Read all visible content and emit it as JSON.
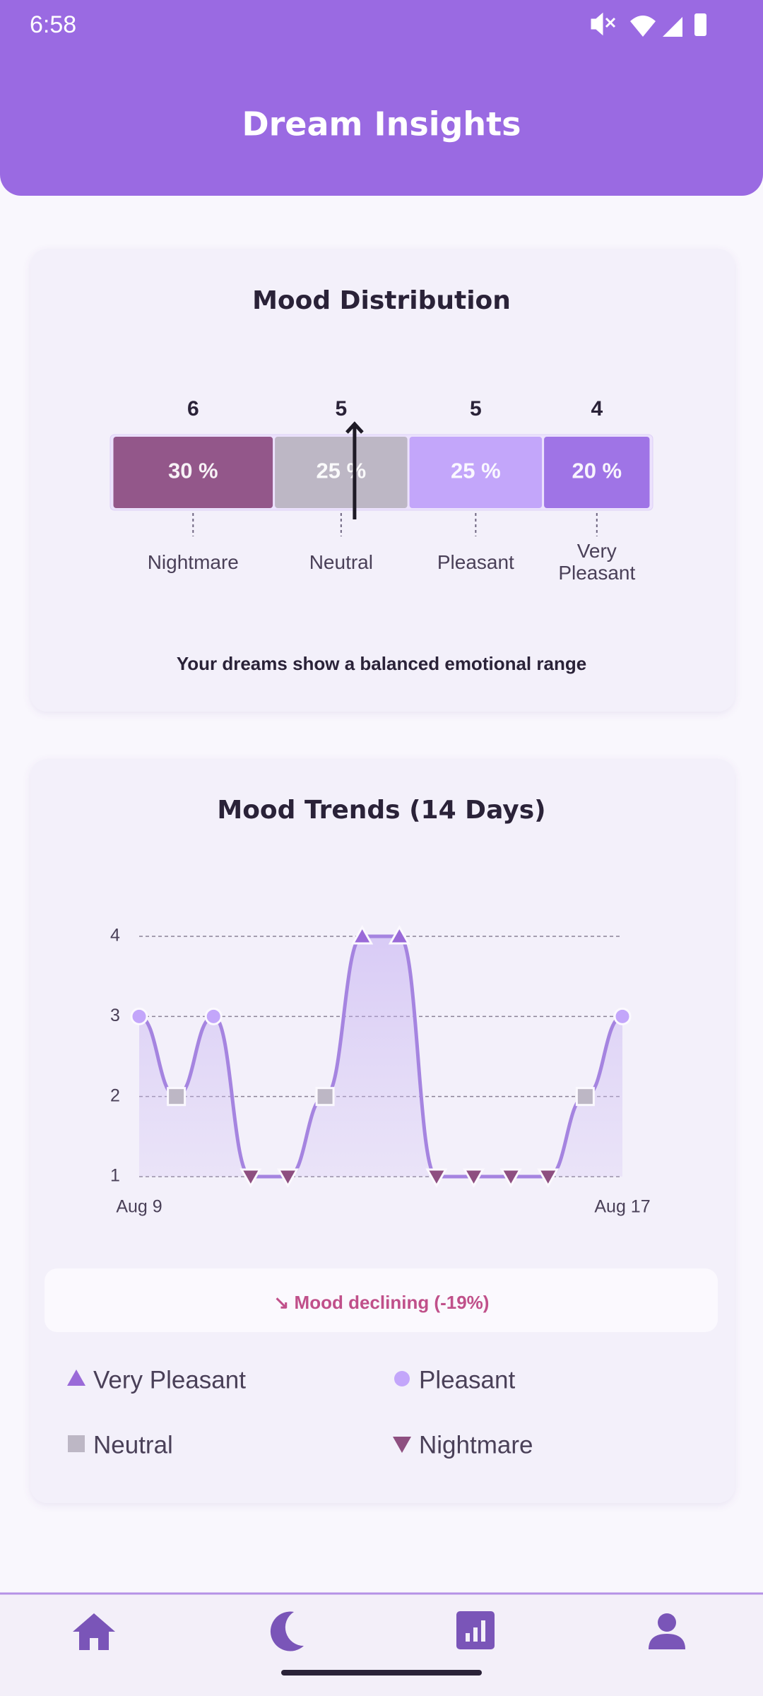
{
  "status_bar": {
    "time": "6:58"
  },
  "header": {
    "title": "Dream Insights"
  },
  "chart_data": [
    {
      "type": "stacked-bar",
      "title": "Mood Distribution",
      "categories": [
        "Nightmare",
        "Neutral",
        "Pleasant",
        "Very Pleasant"
      ],
      "counts": [
        6,
        5,
        5,
        4
      ],
      "values": [
        30,
        25,
        25,
        20
      ],
      "value_labels": [
        "30 %",
        "25 %",
        "25 %",
        "20 %"
      ],
      "colors": [
        "#93578a",
        "#bdb7c5",
        "#c3a6fa",
        "#9f74e6"
      ],
      "indicator": 45,
      "xlim": [
        0,
        100
      ],
      "caption": "Your dreams show a balanced emotional range"
    },
    {
      "type": "line",
      "title": "Mood Trends (14 Days)",
      "categories": [
        "Aug 9",
        null,
        null,
        null,
        null,
        null,
        null,
        null,
        null,
        null,
        null,
        null,
        null,
        "Aug 17"
      ],
      "values": [
        3,
        2,
        3,
        1,
        1,
        2,
        4,
        4,
        1,
        1,
        1,
        1,
        2,
        3
      ],
      "color": "#a584e0",
      "ylim": [
        1,
        4
      ],
      "yticks": [
        1,
        2,
        3,
        4
      ],
      "grid": true,
      "levels": [
        {
          "name": "Very Pleasant",
          "value": 4,
          "color": "#9a6ad8",
          "shape": "triangle-up"
        },
        {
          "name": "Pleasant",
          "value": 3,
          "color": "#c3a6fa",
          "shape": "circle"
        },
        {
          "name": "Neutral",
          "value": 2,
          "color": "#bdb7c5",
          "shape": "square"
        },
        {
          "name": "Nightmare",
          "value": 1,
          "color": "#8e4f80",
          "shape": "triangle-down"
        }
      ],
      "note": "↘ Mood declining (-19%)"
    }
  ]
}
